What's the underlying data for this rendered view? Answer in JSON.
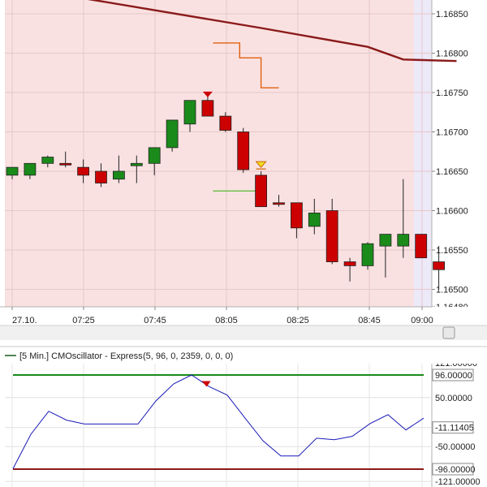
{
  "chart_data": [
    {
      "type": "candlestick",
      "x_labels": [
        "27.10.",
        "07:25",
        "07:45",
        "08:05",
        "08:25",
        "08:45",
        "09:00"
      ],
      "y_ticks": [
        1.1685,
        1.168,
        1.1675,
        1.167,
        1.1665,
        1.166,
        1.1655,
        1.165,
        1.1648
      ],
      "y_tick_labels": [
        "1.16850",
        "1.16800",
        "1.16750",
        "1.16700",
        "1.16650",
        "1.16600",
        "1.16550",
        "1.16500",
        "1.16480"
      ],
      "ylim": [
        1.1648,
        1.1687
      ],
      "grid": true,
      "candles": [
        {
          "open": 1.16645,
          "high": 1.16655,
          "low": 1.1664,
          "close": 1.16655
        },
        {
          "open": 1.16645,
          "high": 1.1666,
          "low": 1.1664,
          "close": 1.1666
        },
        {
          "open": 1.1666,
          "high": 1.1667,
          "low": 1.16655,
          "close": 1.16668
        },
        {
          "open": 1.1666,
          "high": 1.16675,
          "low": 1.16655,
          "close": 1.16658
        },
        {
          "open": 1.16655,
          "high": 1.16665,
          "low": 1.16635,
          "close": 1.16645
        },
        {
          "open": 1.1665,
          "high": 1.1666,
          "low": 1.1663,
          "close": 1.16635
        },
        {
          "open": 1.1664,
          "high": 1.1667,
          "low": 1.16635,
          "close": 1.1665
        },
        {
          "open": 1.16657,
          "high": 1.1667,
          "low": 1.16635,
          "close": 1.1666
        },
        {
          "open": 1.1666,
          "high": 1.1668,
          "low": 1.16645,
          "close": 1.1668
        },
        {
          "open": 1.1668,
          "high": 1.16715,
          "low": 1.16675,
          "close": 1.16715
        },
        {
          "open": 1.1671,
          "high": 1.1674,
          "low": 1.167,
          "close": 1.1674
        },
        {
          "open": 1.1674,
          "high": 1.16745,
          "low": 1.1672,
          "close": 1.1672
        },
        {
          "open": 1.1672,
          "high": 1.16725,
          "low": 1.167,
          "close": 1.16702
        },
        {
          "open": 1.167,
          "high": 1.16705,
          "low": 1.16648,
          "close": 1.16652
        },
        {
          "open": 1.16645,
          "high": 1.1665,
          "low": 1.16605,
          "close": 1.16605
        },
        {
          "open": 1.1661,
          "high": 1.1662,
          "low": 1.16605,
          "close": 1.16608
        },
        {
          "open": 1.1661,
          "high": 1.1661,
          "low": 1.16565,
          "close": 1.16578
        },
        {
          "open": 1.1658,
          "high": 1.16615,
          "low": 1.1657,
          "close": 1.16597
        },
        {
          "open": 1.166,
          "high": 1.16615,
          "low": 1.16532,
          "close": 1.16535
        },
        {
          "open": 1.16535,
          "high": 1.1654,
          "low": 1.1651,
          "close": 1.1653
        },
        {
          "open": 1.1653,
          "high": 1.1656,
          "low": 1.16525,
          "close": 1.16558
        },
        {
          "open": 1.16555,
          "high": 1.1657,
          "low": 1.16515,
          "close": 1.1657
        },
        {
          "open": 1.16555,
          "high": 1.1664,
          "low": 1.1654,
          "close": 1.1657
        },
        {
          "open": 1.1657,
          "high": 1.1657,
          "low": 1.1654,
          "close": 1.1654
        },
        {
          "open": 1.16535,
          "high": 1.16555,
          "low": 1.165,
          "close": 1.16525
        }
      ],
      "moving_average": [
        {
          "x": 3.4,
          "y": 1.16872
        },
        {
          "x": 14,
          "y": 1.16832
        },
        {
          "x": 20,
          "y": 1.16808
        },
        {
          "x": 22,
          "y": 1.16792
        },
        {
          "x": 25,
          "y": 1.1679
        }
      ],
      "stop_line": [
        {
          "x": 11.3,
          "y": 1.16813
        },
        {
          "x": 12.8,
          "y": 1.16813
        },
        {
          "x": 12.8,
          "y": 1.16794
        },
        {
          "x": 14,
          "y": 1.16794
        },
        {
          "x": 14,
          "y": 1.16756
        },
        {
          "x": 15,
          "y": 1.16756
        }
      ],
      "green_line": [
        {
          "x": 11.3,
          "y": 1.16625
        },
        {
          "x": 14.3,
          "y": 1.16625
        }
      ],
      "markers": [
        {
          "type": "sell",
          "x": 11,
          "y": 1.16745
        },
        {
          "type": "buy_alert",
          "x": 14,
          "y": 1.16656
        }
      ],
      "colors": {
        "bull": "#1a8a1a",
        "bear": "#cc0000",
        "ma": "#8b1a1a",
        "stop": "#e06010",
        "signal_line": "#66bb44",
        "background_upper": "#f9e1e1",
        "background_right": "#ece9f9"
      }
    },
    {
      "type": "line",
      "legend": "[5 Min.] CMOscillator - Express",
      "params": "(5, 96, 0, 2359, 0, 0, 0)",
      "y_ticks": [
        121,
        96,
        50,
        -50,
        -96,
        -121
      ],
      "y_tick_labels": [
        "121.00000",
        "96.00000",
        "50.00000",
        "-50.00000",
        "-96.00000",
        "-121.00000"
      ],
      "ylim": [
        -121,
        121
      ],
      "current_value_label": "-11.11405",
      "upper_level": 96,
      "lower_level": -96,
      "colors": {
        "line": "#1a1ab8",
        "upper": "#1a8a1a",
        "lower": "#8b1a1a",
        "marker": "#cc0000"
      },
      "series": [
        {
          "values": [
            -95,
            -25,
            22,
            4,
            -4,
            -4,
            -4,
            -4,
            43,
            78,
            96,
            72,
            55,
            8,
            -38,
            -69,
            -69,
            -33,
            -36,
            -29,
            -3,
            15,
            -16,
            8
          ]
        }
      ],
      "markers": [
        {
          "type": "sell",
          "x": 10.8,
          "y": 77
        }
      ]
    }
  ]
}
